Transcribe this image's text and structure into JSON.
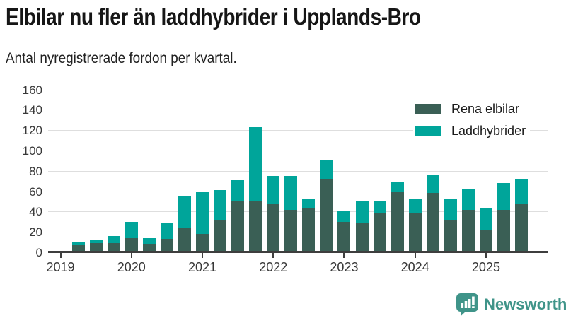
{
  "chart_data": {
    "type": "bar",
    "stacked": true,
    "title": "Elbilar nu fler än laddhybrider i Upplands-Bro",
    "subtitle": "Antal nyregistrerade fordon per kvartal.",
    "xlabel": "",
    "ylabel": "",
    "categories": [
      "2019 Q2",
      "2019 Q3",
      "2019 Q4",
      "2020 Q1",
      "2020 Q2",
      "2020 Q3",
      "2020 Q4",
      "2021 Q1",
      "2021 Q2",
      "2021 Q3",
      "2021 Q4",
      "2022 Q1",
      "2022 Q2",
      "2022 Q3",
      "2022 Q4",
      "2023 Q1",
      "2023 Q2",
      "2023 Q3",
      "2023 Q4",
      "2024 Q1",
      "2024 Q2",
      "2024 Q3",
      "2024 Q4",
      "2025 Q1",
      "2025 Q2",
      "2025 Q3"
    ],
    "series": [
      {
        "name": "Rena elbilar",
        "color": "#3a5f55",
        "values": [
          7,
          9,
          9,
          14,
          8,
          13,
          24,
          18,
          31,
          50,
          51,
          48,
          42,
          44,
          72,
          30,
          29,
          38,
          59,
          38,
          58,
          32,
          42,
          22,
          42,
          48
        ]
      },
      {
        "name": "Laddhybrider",
        "color": "#00a59a",
        "values": [
          3,
          3,
          7,
          16,
          6,
          16,
          31,
          42,
          30,
          21,
          72,
          27,
          33,
          8,
          18,
          11,
          21,
          12,
          10,
          14,
          18,
          21,
          20,
          22,
          26,
          24
        ]
      }
    ],
    "x_tick_labels": [
      "2019",
      "2020",
      "2021",
      "2022",
      "2023",
      "2024",
      "2025"
    ],
    "y_ticks": [
      0,
      20,
      40,
      60,
      80,
      100,
      120,
      140,
      160
    ],
    "ylim": [
      0,
      160
    ],
    "grid": "horizontal",
    "legend_position": "top-right"
  },
  "footer": {
    "brand": "Newsworthy",
    "brand_color": "#3f9489"
  }
}
